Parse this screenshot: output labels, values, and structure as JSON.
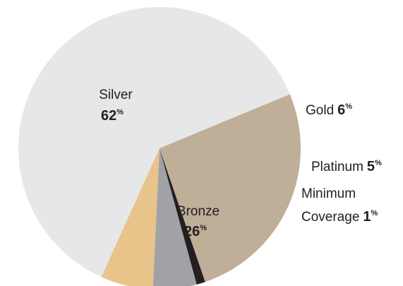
{
  "chart_data": {
    "type": "pie",
    "unit": "%",
    "slices": [
      {
        "label": "Silver",
        "label_lines": [
          "Silver"
        ],
        "value": 62,
        "color": "#e6e7e8"
      },
      {
        "label": "Gold",
        "label_lines": [
          "Gold"
        ],
        "value": 6,
        "color": "#e8c38a"
      },
      {
        "label": "Platinum",
        "label_lines": [
          "Platinum"
        ],
        "value": 5,
        "color": "#a0a2a5"
      },
      {
        "label": "Minimum Coverage",
        "label_lines": [
          "Minimum",
          "Coverage"
        ],
        "value": 1,
        "color": "#231f20"
      },
      {
        "label": "Bronze",
        "label_lines": [
          "Bronze"
        ],
        "value": 26,
        "color": "#bfae98"
      }
    ]
  }
}
